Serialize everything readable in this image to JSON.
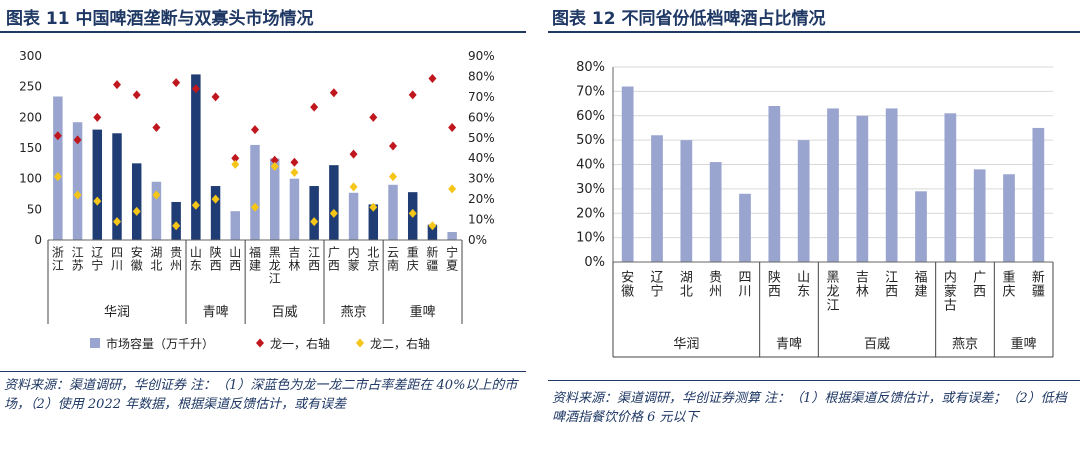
{
  "left": {
    "title": "图表 11  中国啤酒垄断与双寡头市场情况",
    "source": "资料来源：渠道调研，华创证券  注：（1）深蓝色为龙一龙二市占率差距在 40%以上的市场，（2）使用 2022 年数据，根据渠道反馈估计，或有误差",
    "legend": {
      "bar": "市场容量（万千升）",
      "leader1": "龙一，右轴",
      "leader2": "龙二，右轴"
    },
    "colors": {
      "bar_light": "#9aa5cf",
      "bar_dark": "#203c74",
      "leader1": "#c0171e",
      "leader2": "#f5c518"
    }
  },
  "right": {
    "title": "图表 12  不同省份低档啤酒占比情况",
    "source": "资料来源：渠道调研，华创证券测算  注：（1）根据渠道反馈估计，或有误差；（2）低档啤酒指餐饮价格 6 元以下",
    "colors": {
      "bar": "#9aa5cf"
    }
  },
  "chart_data": [
    {
      "type": "bar",
      "categories": [
        "浙江",
        "江苏",
        "辽宁",
        "四川",
        "安徽",
        "湖北",
        "贵州",
        "山东",
        "陕西",
        "山西",
        "福建",
        "黑龙江",
        "吉林",
        "江西",
        "广西",
        "内蒙",
        "北京",
        "云南",
        "重庆",
        "新疆",
        "宁夏"
      ],
      "groups": [
        {
          "name": "华润",
          "members": [
            "浙江",
            "江苏",
            "辽宁",
            "四川",
            "安徽",
            "湖北",
            "贵州"
          ]
        },
        {
          "name": "青啤",
          "members": [
            "山东",
            "陕西",
            "山西"
          ]
        },
        {
          "name": "百威",
          "members": [
            "福建",
            "黑龙江",
            "吉林",
            "江西"
          ]
        },
        {
          "name": "燕京",
          "members": [
            "广西",
            "内蒙",
            "北京"
          ]
        },
        {
          "name": "重啤",
          "members": [
            "云南",
            "重庆",
            "新疆",
            "宁夏"
          ]
        }
      ],
      "series": [
        {
          "name": "市场容量（万千升）",
          "axis": "left",
          "values": [
            234,
            192,
            180,
            174,
            125,
            95,
            62,
            270,
            88,
            47,
            155,
            133,
            100,
            88,
            122,
            77,
            58,
            90,
            78,
            25,
            13
          ],
          "dark": [
            false,
            false,
            true,
            true,
            true,
            false,
            true,
            true,
            true,
            false,
            false,
            false,
            false,
            true,
            true,
            false,
            true,
            false,
            true,
            true,
            false
          ]
        },
        {
          "name": "龙一，右轴",
          "axis": "right",
          "values": [
            0.51,
            0.49,
            0.6,
            0.76,
            0.71,
            0.55,
            0.77,
            0.74,
            0.7,
            0.4,
            0.54,
            0.39,
            0.38,
            0.65,
            0.72,
            0.42,
            0.6,
            0.46,
            0.71,
            0.79,
            0.55
          ]
        },
        {
          "name": "龙二，右轴",
          "axis": "right",
          "values": [
            0.31,
            0.22,
            0.19,
            0.09,
            0.14,
            0.22,
            0.07,
            0.17,
            0.2,
            0.37,
            0.16,
            0.36,
            0.33,
            0.09,
            0.13,
            0.26,
            0.16,
            0.31,
            0.13,
            0.07,
            0.25
          ]
        }
      ],
      "ylim_left": [
        0,
        300
      ],
      "yticks_left": [
        0,
        50,
        100,
        150,
        200,
        250,
        300
      ],
      "ylim_right": [
        0,
        0.9
      ],
      "yticks_right": [
        "0%",
        "10%",
        "20%",
        "30%",
        "40%",
        "50%",
        "60%",
        "70%",
        "80%",
        "90%"
      ]
    },
    {
      "type": "bar",
      "categories": [
        "安徽",
        "辽宁",
        "湖北",
        "贵州",
        "四川",
        "陕西",
        "山东",
        "黑龙江",
        "吉林",
        "江西",
        "福建",
        "内蒙古",
        "广西",
        "重庆",
        "新疆"
      ],
      "groups": [
        {
          "name": "华润",
          "members": [
            "安徽",
            "辽宁",
            "湖北",
            "贵州",
            "四川"
          ]
        },
        {
          "name": "青啤",
          "members": [
            "陕西",
            "山东"
          ]
        },
        {
          "name": "百威",
          "members": [
            "黑龙江",
            "吉林",
            "江西",
            "福建"
          ]
        },
        {
          "name": "燕京",
          "members": [
            "内蒙古",
            "广西"
          ]
        },
        {
          "name": "重啤",
          "members": [
            "重庆",
            "新疆"
          ]
        }
      ],
      "values": [
        0.72,
        0.52,
        0.5,
        0.41,
        0.28,
        0.64,
        0.5,
        0.63,
        0.6,
        0.63,
        0.29,
        0.61,
        0.38,
        0.36,
        0.55
      ],
      "ylim": [
        0,
        0.8
      ],
      "yticks": [
        "0%",
        "10%",
        "20%",
        "30%",
        "40%",
        "50%",
        "60%",
        "70%",
        "80%"
      ],
      "grid": true
    }
  ]
}
